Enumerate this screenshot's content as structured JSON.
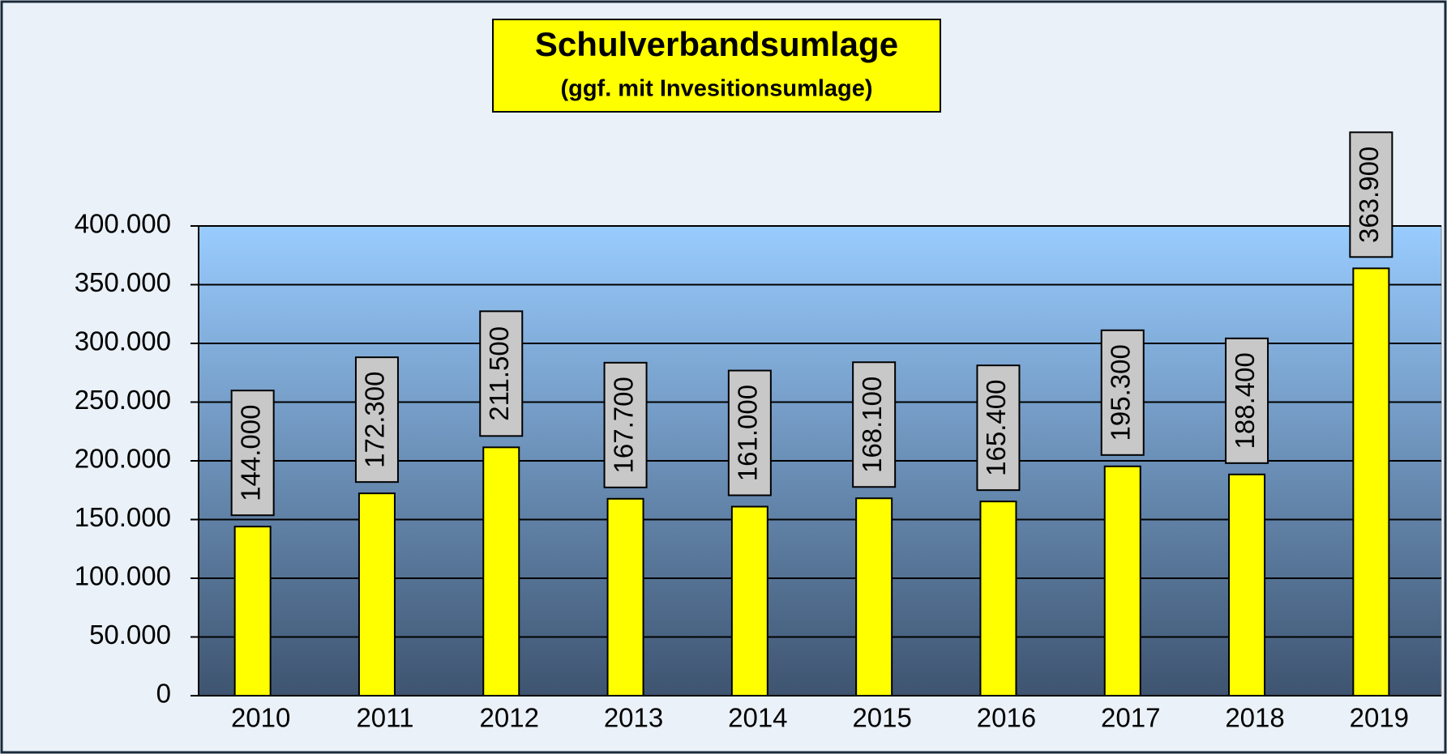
{
  "chart_data": {
    "type": "bar",
    "title": "Schulverbandsumlage",
    "subtitle": "(ggf. mit Invesitionsumlage)",
    "categories": [
      "2010",
      "2011",
      "2012",
      "2013",
      "2014",
      "2015",
      "2016",
      "2017",
      "2018",
      "2019"
    ],
    "values": [
      144000,
      172300,
      211500,
      167700,
      161000,
      168100,
      165400,
      195300,
      188400,
      363900
    ],
    "value_labels": [
      "144.000",
      "172.300",
      "211.500",
      "167.700",
      "161.000",
      "168.100",
      "165.400",
      "195.300",
      "188.400",
      "363.900"
    ],
    "color": "#ffff00",
    "ylim": [
      0,
      400000
    ],
    "yticks": [
      0,
      {
        "value": 50000,
        "label": "50.000"
      },
      {
        "value": 100000,
        "label": "100.000"
      },
      {
        "value": 150000,
        "label": "150.000"
      },
      {
        "value": 200000,
        "label": "200.000"
      },
      {
        "value": 250000,
        "label": "250.000"
      },
      {
        "value": 300000,
        "label": "300.000"
      },
      {
        "value": 350000,
        "label": "350.000"
      },
      {
        "value": 400000,
        "label": "400.000"
      }
    ],
    "grid": true
  }
}
